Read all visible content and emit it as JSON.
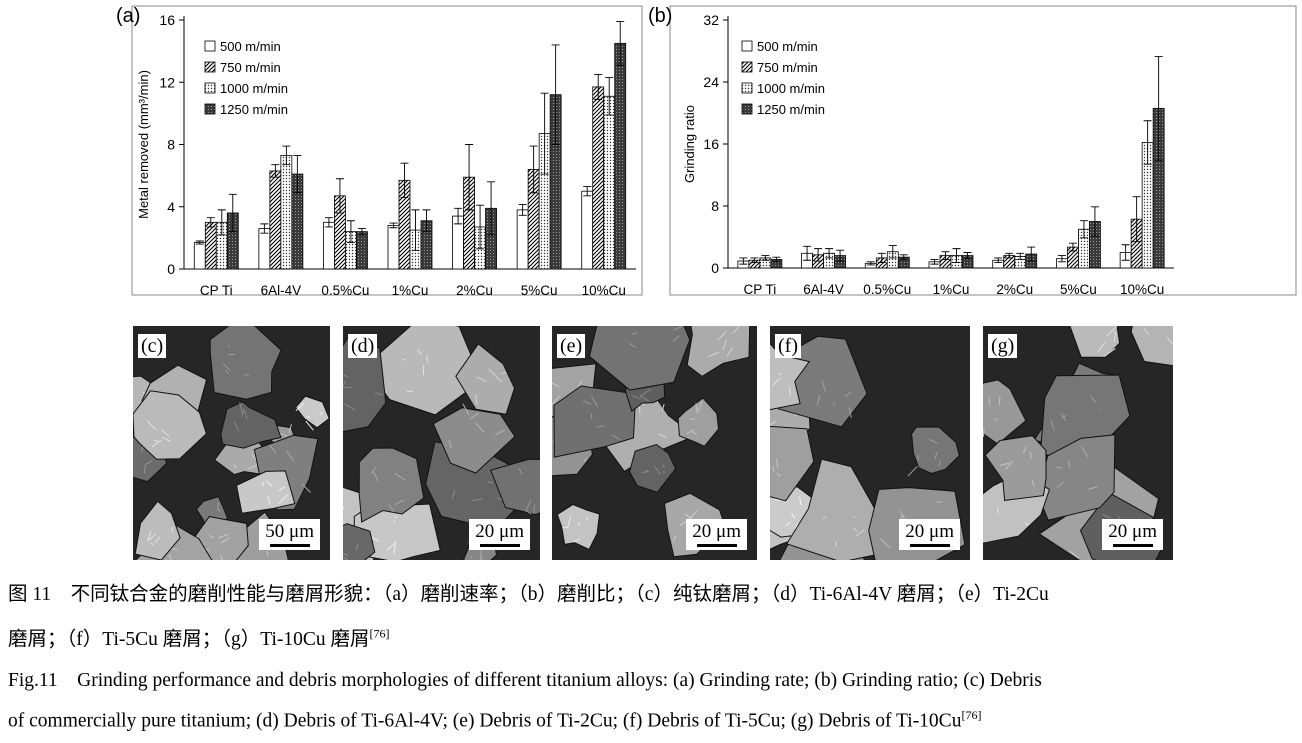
{
  "legend_labels": [
    "500 m/min",
    "750 m/min",
    "1000 m/min",
    "1250 m/min"
  ],
  "chart_data": [
    {
      "type": "bar",
      "panel_label": "(a)",
      "ylabel": "Metal removed (mm³/min)",
      "ylim": [
        0,
        16
      ],
      "yticks": [
        0,
        4,
        8,
        12,
        16
      ],
      "grid": false,
      "legend_position": "top-left",
      "categories": [
        "CP Ti",
        "6Al-4V",
        "0.5%Cu",
        "1%Cu",
        "2%Cu",
        "5%Cu",
        "10%Cu"
      ],
      "series": [
        {
          "name": "500 m/min",
          "values": [
            1.7,
            2.6,
            3.0,
            2.8,
            3.4,
            3.8,
            5.0
          ],
          "errors": [
            0.1,
            0.3,
            0.3,
            0.15,
            0.5,
            0.35,
            0.3
          ]
        },
        {
          "name": "750 m/min",
          "values": [
            3.0,
            6.3,
            4.7,
            5.7,
            5.9,
            6.4,
            11.7
          ],
          "errors": [
            0.3,
            0.4,
            1.1,
            1.1,
            2.1,
            1.5,
            0.8
          ]
        },
        {
          "name": "1000 m/min",
          "values": [
            3.0,
            7.3,
            2.4,
            2.5,
            2.7,
            8.7,
            11.1
          ],
          "errors": [
            0.8,
            0.6,
            0.7,
            1.3,
            1.4,
            2.6,
            1.2
          ]
        },
        {
          "name": "1250 m/min",
          "values": [
            3.6,
            6.1,
            2.4,
            3.1,
            3.9,
            11.2,
            14.5
          ],
          "errors": [
            1.2,
            1.2,
            0.2,
            0.7,
            1.7,
            3.2,
            1.4
          ]
        }
      ]
    },
    {
      "type": "bar",
      "panel_label": "(b)",
      "ylabel": "Grinding ratio",
      "ylim": [
        0,
        32
      ],
      "yticks": [
        0,
        8,
        16,
        24,
        32
      ],
      "grid": false,
      "legend_position": "top-left",
      "categories": [
        "CP Ti",
        "6Al-4V",
        "0.5%Cu",
        "1%Cu",
        "2%Cu",
        "5%Cu",
        "10%Cu"
      ],
      "series": [
        {
          "name": "500 m/min",
          "values": [
            0.9,
            1.9,
            0.6,
            0.8,
            1.0,
            1.2,
            2.0
          ],
          "errors": [
            0.4,
            0.9,
            0.2,
            0.3,
            0.3,
            0.4,
            1.0
          ]
        },
        {
          "name": "750 m/min",
          "values": [
            1.0,
            1.7,
            1.3,
            1.6,
            1.6,
            2.7,
            6.3
          ],
          "errors": [
            0.3,
            0.8,
            0.6,
            0.5,
            0.3,
            0.5,
            2.9
          ]
        },
        {
          "name": "1000 m/min",
          "values": [
            1.3,
            1.9,
            2.1,
            1.6,
            1.5,
            5.0,
            16.2
          ],
          "errors": [
            0.3,
            0.6,
            0.8,
            0.9,
            0.4,
            1.1,
            2.8
          ]
        },
        {
          "name": "1250 m/min",
          "values": [
            1.1,
            1.6,
            1.4,
            1.6,
            1.8,
            6.0,
            20.6
          ],
          "errors": [
            0.3,
            0.7,
            0.3,
            0.4,
            0.9,
            1.9,
            6.7
          ]
        }
      ]
    }
  ],
  "micrographs": [
    {
      "label": "(c)",
      "scale": "50 μm"
    },
    {
      "label": "(d)",
      "scale": "20 μm"
    },
    {
      "label": "(e)",
      "scale": "20 μm"
    },
    {
      "label": "(f)",
      "scale": "20 μm"
    },
    {
      "label": "(g)",
      "scale": "20 μm"
    }
  ],
  "caption": {
    "cn_line1": "图 11　不同钛合金的磨削性能与磨屑形貌：（a）磨削速率；（b）磨削比；（c）纯钛磨屑；（d）Ti-6Al-4V 磨屑；（e）Ti-2Cu",
    "cn_line2": "磨屑；（f）Ti-5Cu 磨屑；（g）Ti-10Cu 磨屑",
    "ref": "[76]",
    "en_line1": "Fig.11 Grinding performance and debris morphologies of different titanium alloys: (a) Grinding rate; (b) Grinding ratio; (c) Debris",
    "en_line2": "of commercially pure titanium; (d) Debris of Ti-6Al-4V; (e) Debris of Ti-2Cu; (f) Debris of Ti-5Cu; (g) Debris of Ti-10Cu"
  }
}
